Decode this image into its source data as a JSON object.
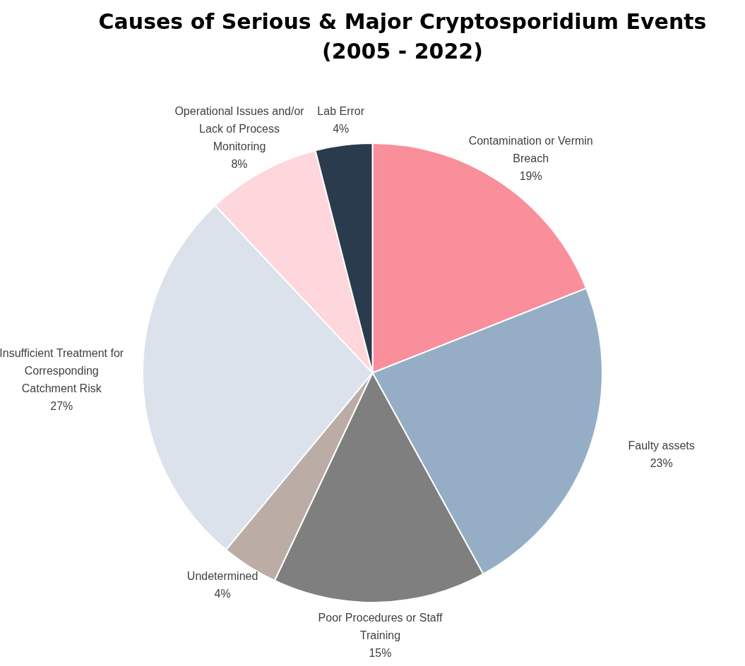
{
  "chart_data": {
    "type": "pie",
    "title": "Causes of Serious & Major Cryptosporidium Events (2005 - 2022)",
    "categories": [
      "Contamination or Vermin Breach",
      "Faulty assets",
      "Poor Procedures or Staff Training",
      "Undetermined",
      "Insufficient Treatment for Corresponding Catchment Risk",
      "Operational Issues and/or Lack of Process Monitoring",
      "Lab Error"
    ],
    "values": [
      19,
      23,
      15,
      4,
      27,
      8,
      4
    ],
    "colors": [
      "#f98f9a",
      "#95aec6",
      "#7f7f7f",
      "#bbada5",
      "#dbe2eb",
      "#fdd7dc",
      "#293b4c"
    ],
    "value_labels": [
      "19%",
      "23%",
      "15%",
      "4%",
      "27%",
      "8%",
      "4%"
    ],
    "legend": false
  }
}
